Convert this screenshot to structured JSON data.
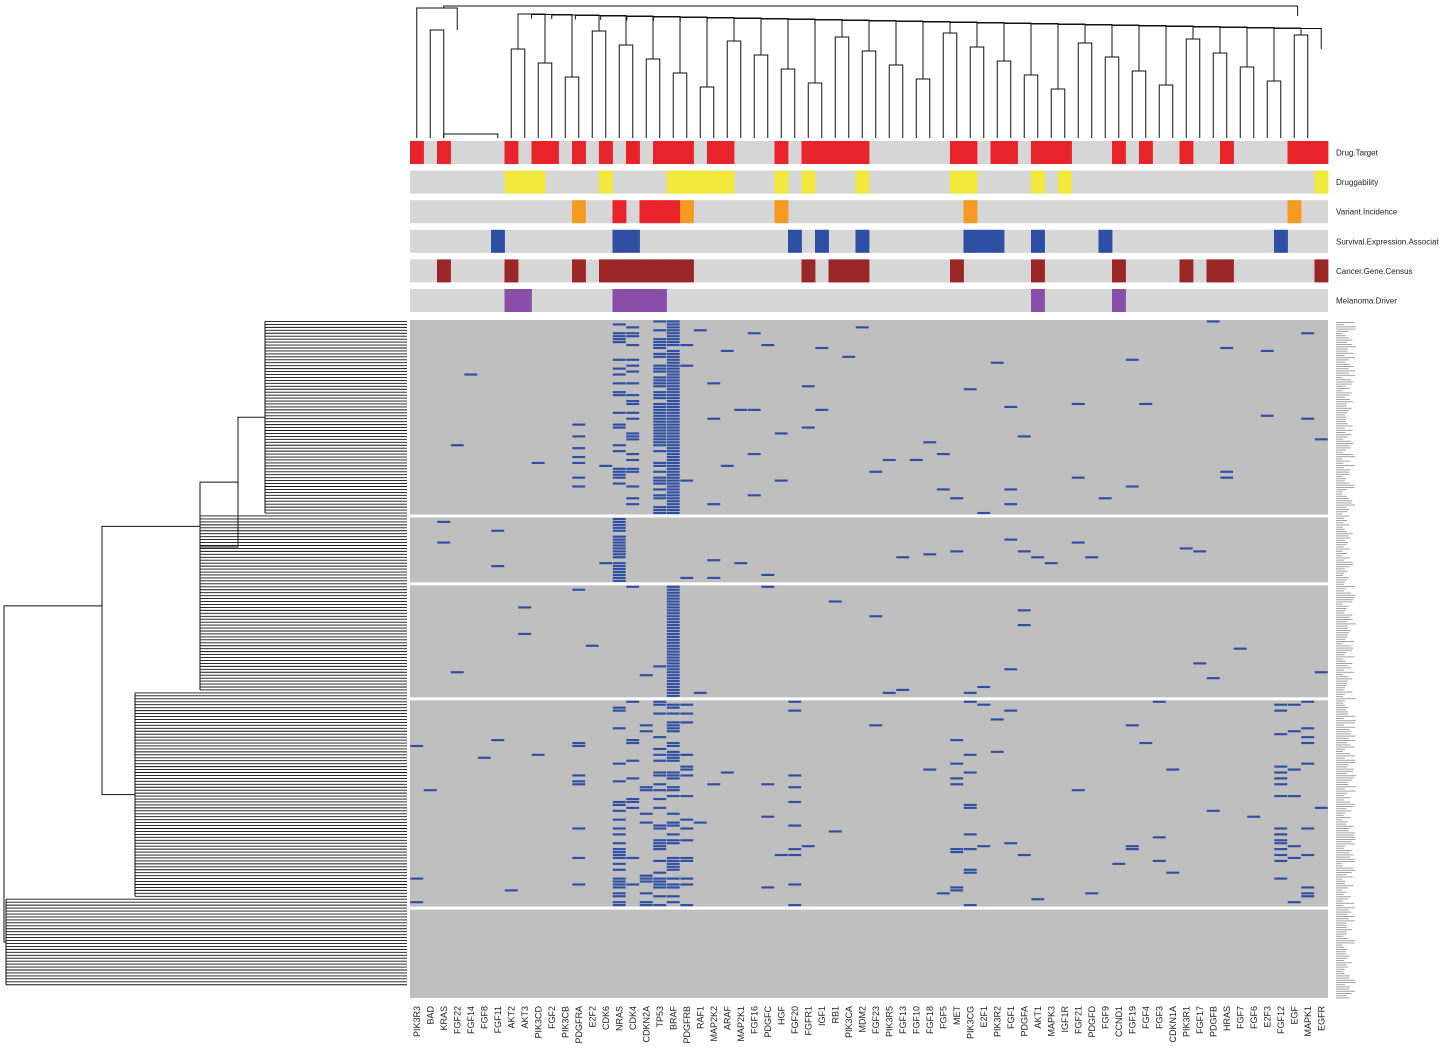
{
  "chart_data": {
    "type": "heatmap",
    "description_source": "clustered oncoprint heatmap with annotation tracks",
    "genes": [
      "PIK3R3",
      "BAD",
      "KRAS",
      "FGF22",
      "FGF14",
      "FGF8",
      "FGF11",
      "AKT2",
      "AKT3",
      "PIK3CD",
      "FGF2",
      "PIK3CB",
      "PDGFRA",
      "E2F2",
      "CDK6",
      "NRAS",
      "CDK4",
      "CDKN2A",
      "TP53",
      "BRAF",
      "PDGFRB",
      "RAF1",
      "MAP2K2",
      "ARAF",
      "MAP2K1",
      "FGF16",
      "PDGFC",
      "HGF",
      "FGF20",
      "FGFR1",
      "IGF1",
      "RB1",
      "PIK3CA",
      "MDM2",
      "FGF23",
      "PIK3R5",
      "FGF13",
      "FGF10",
      "FGF18",
      "FGF5",
      "MET",
      "PIK3CG",
      "E2F1",
      "PIK3R2",
      "FGF1",
      "PDGFA",
      "AKT1",
      "MAPK3",
      "IGF1R",
      "FGF21",
      "PDGFD",
      "FGF9",
      "CCND1",
      "FGF19",
      "FGF4",
      "FGF3",
      "CDKN1A",
      "PIK3R1",
      "FGF17",
      "PDGFB",
      "HRAS",
      "FGF7",
      "FGF6",
      "E2F3",
      "FGF12",
      "EGF",
      "MAPK1",
      "EGFR"
    ],
    "annotation_tracks": [
      {
        "name": "Drug.Target",
        "color": "#e8232a",
        "positive": [
          "PIK3R3",
          "KRAS",
          "AKT2",
          "PIK3CD",
          "FGF2",
          "PDGFRA",
          "CDK6",
          "CDK4",
          "TP53",
          "BRAF",
          "PDGFRB",
          "MAP2K2",
          "ARAF",
          "HGF",
          "FGFR1",
          "IGF1",
          "RB1",
          "PIK3CA",
          "MDM2",
          "MET",
          "PIK3CG",
          "PIK3R2",
          "FGF1",
          "AKT1",
          "MAPK3",
          "IGF1R",
          "CCND1",
          "FGF4",
          "PIK3R1",
          "HRAS",
          "EGF",
          "MAPK1",
          "EGFR"
        ]
      },
      {
        "name": "Druggability",
        "color": "#f0e93c",
        "positive": [
          "AKT2",
          "AKT3",
          "PIK3CD",
          "CDK6",
          "BRAF",
          "PDGFRB",
          "RAF1",
          "ARAF",
          "MAP2K2",
          "HGF",
          "FGFR1",
          "MDM2",
          "MET",
          "PIK3CG",
          "AKT1",
          "IGF1R",
          "EGFR"
        ]
      },
      {
        "name": "Variant.Incidence",
        "color": "#f79a22",
        "positive": [
          "PDGFRA",
          "PDGFRB",
          "HGF",
          "PIK3CG",
          "EGF"
        ],
        "high": [
          "NRAS",
          "CDKN2A",
          "TP53",
          "BRAF"
        ],
        "high_color": "#e8232a"
      },
      {
        "name": "Survival.Expression.Association",
        "color": "#2e4fa3",
        "positive": [
          "FGF11",
          "NRAS",
          "CDK4",
          "FGF20",
          "IGF1",
          "MDM2",
          "PIK3CG",
          "E2F1",
          "PIK3R2",
          "AKT1",
          "FGF9",
          "FGF12"
        ]
      },
      {
        "name": "Cancer.Gene.Census",
        "color": "#9a2627",
        "positive": [
          "KRAS",
          "AKT2",
          "PDGFRA",
          "CDK6",
          "NRAS",
          "CDK4",
          "CDKN2A",
          "TP53",
          "BRAF",
          "PDGFRB",
          "FGFR1",
          "RB1",
          "PIK3CA",
          "MDM2",
          "MET",
          "AKT1",
          "CCND1",
          "PIK3R1",
          "PDGFB",
          "HRAS",
          "EGFR"
        ]
      },
      {
        "name": "Melanoma.Driver",
        "color": "#8a4ea8",
        "positive": [
          "AKT2",
          "AKT3",
          "NRAS",
          "CDK4",
          "CDKN2A",
          "TP53",
          "AKT1",
          "CCND1"
        ]
      }
    ],
    "heatmap_colors": {
      "absent": "#bfbfbf",
      "present": "#2e4fa3",
      "track_off": "#d6d6d6"
    },
    "sample_clusters": [
      {
        "rows": 66,
        "column_density": {
          "NRAS": 0.35,
          "CDK4": 0.3,
          "TP53": 0.7,
          "BRAF": 0.92,
          "PDGFRB": 0.05,
          "PDGFRA": 0.08,
          "MAP2K1": 0.05,
          "PIK3CG": 0.04
        }
      },
      {
        "rows": 22,
        "column_density": {
          "NRAS": 0.9,
          "BRAF": 0.05,
          "AKT2": 0.05,
          "RB1": 0.05
        }
      },
      {
        "rows": 38,
        "column_density": {
          "BRAF": 1.0
        }
      },
      {
        "rows": 70,
        "column_density": {
          "NRAS": 0.3,
          "CDK4": 0.12,
          "CDKN2A": 0.12,
          "TP53": 0.35,
          "BRAF": 0.45,
          "PDGFRB": 0.2,
          "PDGFRA": 0.12,
          "FGF20": 0.12,
          "MET": 0.1,
          "PIK3CG": 0.1,
          "FGF12": 0.12,
          "EGF": 0.1,
          "MAPK1": 0.1
        }
      },
      {
        "rows": 30,
        "column_density": {
          "PIK3R3": 0.03
        }
      }
    ],
    "row_labels_legible": false,
    "legend": "right",
    "dendrograms": [
      "top",
      "left"
    ]
  }
}
